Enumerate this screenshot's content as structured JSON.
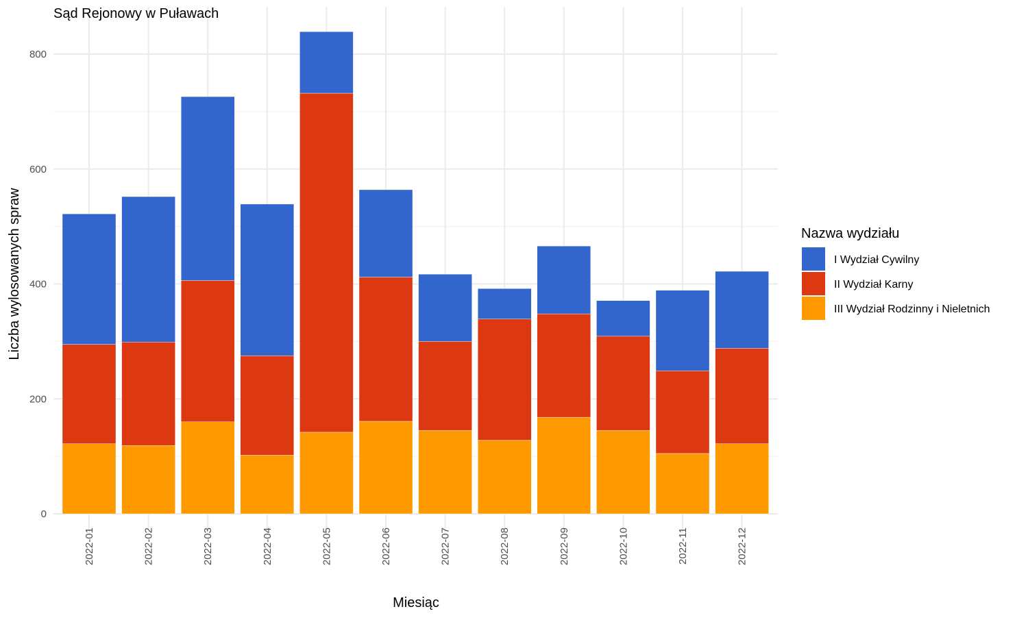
{
  "chart_data": {
    "type": "bar",
    "stacked": true,
    "title": "Sąd Rejonowy w Puławach",
    "xlabel": "Miesiąc",
    "ylabel": "Liczba wylosowanych spraw",
    "ylim": [
      0,
      880
    ],
    "yticks": [
      0,
      200,
      400,
      600,
      800
    ],
    "grid": true,
    "legend_position": "right",
    "legend_title": "Nazwa wydziału",
    "categories": [
      "2022-01",
      "2022-02",
      "2022-03",
      "2022-04",
      "2022-05",
      "2022-06",
      "2022-07",
      "2022-08",
      "2022-09",
      "2022-10",
      "2022-11",
      "2022-12"
    ],
    "series": [
      {
        "name": "III Wydział Rodzinny i Nieletnich",
        "color": "#FF9900",
        "values": [
          122,
          119,
          160,
          102,
          142,
          161,
          145,
          128,
          168,
          145,
          105,
          122
        ]
      },
      {
        "name": "II Wydział Karny",
        "color": "#DC3912",
        "values": [
          173,
          180,
          246,
          173,
          590,
          251,
          155,
          211,
          180,
          164,
          144,
          166
        ]
      },
      {
        "name": "I Wydział Cywilny",
        "color": "#3366CC",
        "values": [
          227,
          253,
          320,
          264,
          107,
          152,
          117,
          53,
          118,
          62,
          140,
          134
        ]
      }
    ],
    "legend_order": [
      "I Wydział Cywilny",
      "II Wydział Karny",
      "III Wydział Rodzinny i Nieletnich"
    ]
  }
}
